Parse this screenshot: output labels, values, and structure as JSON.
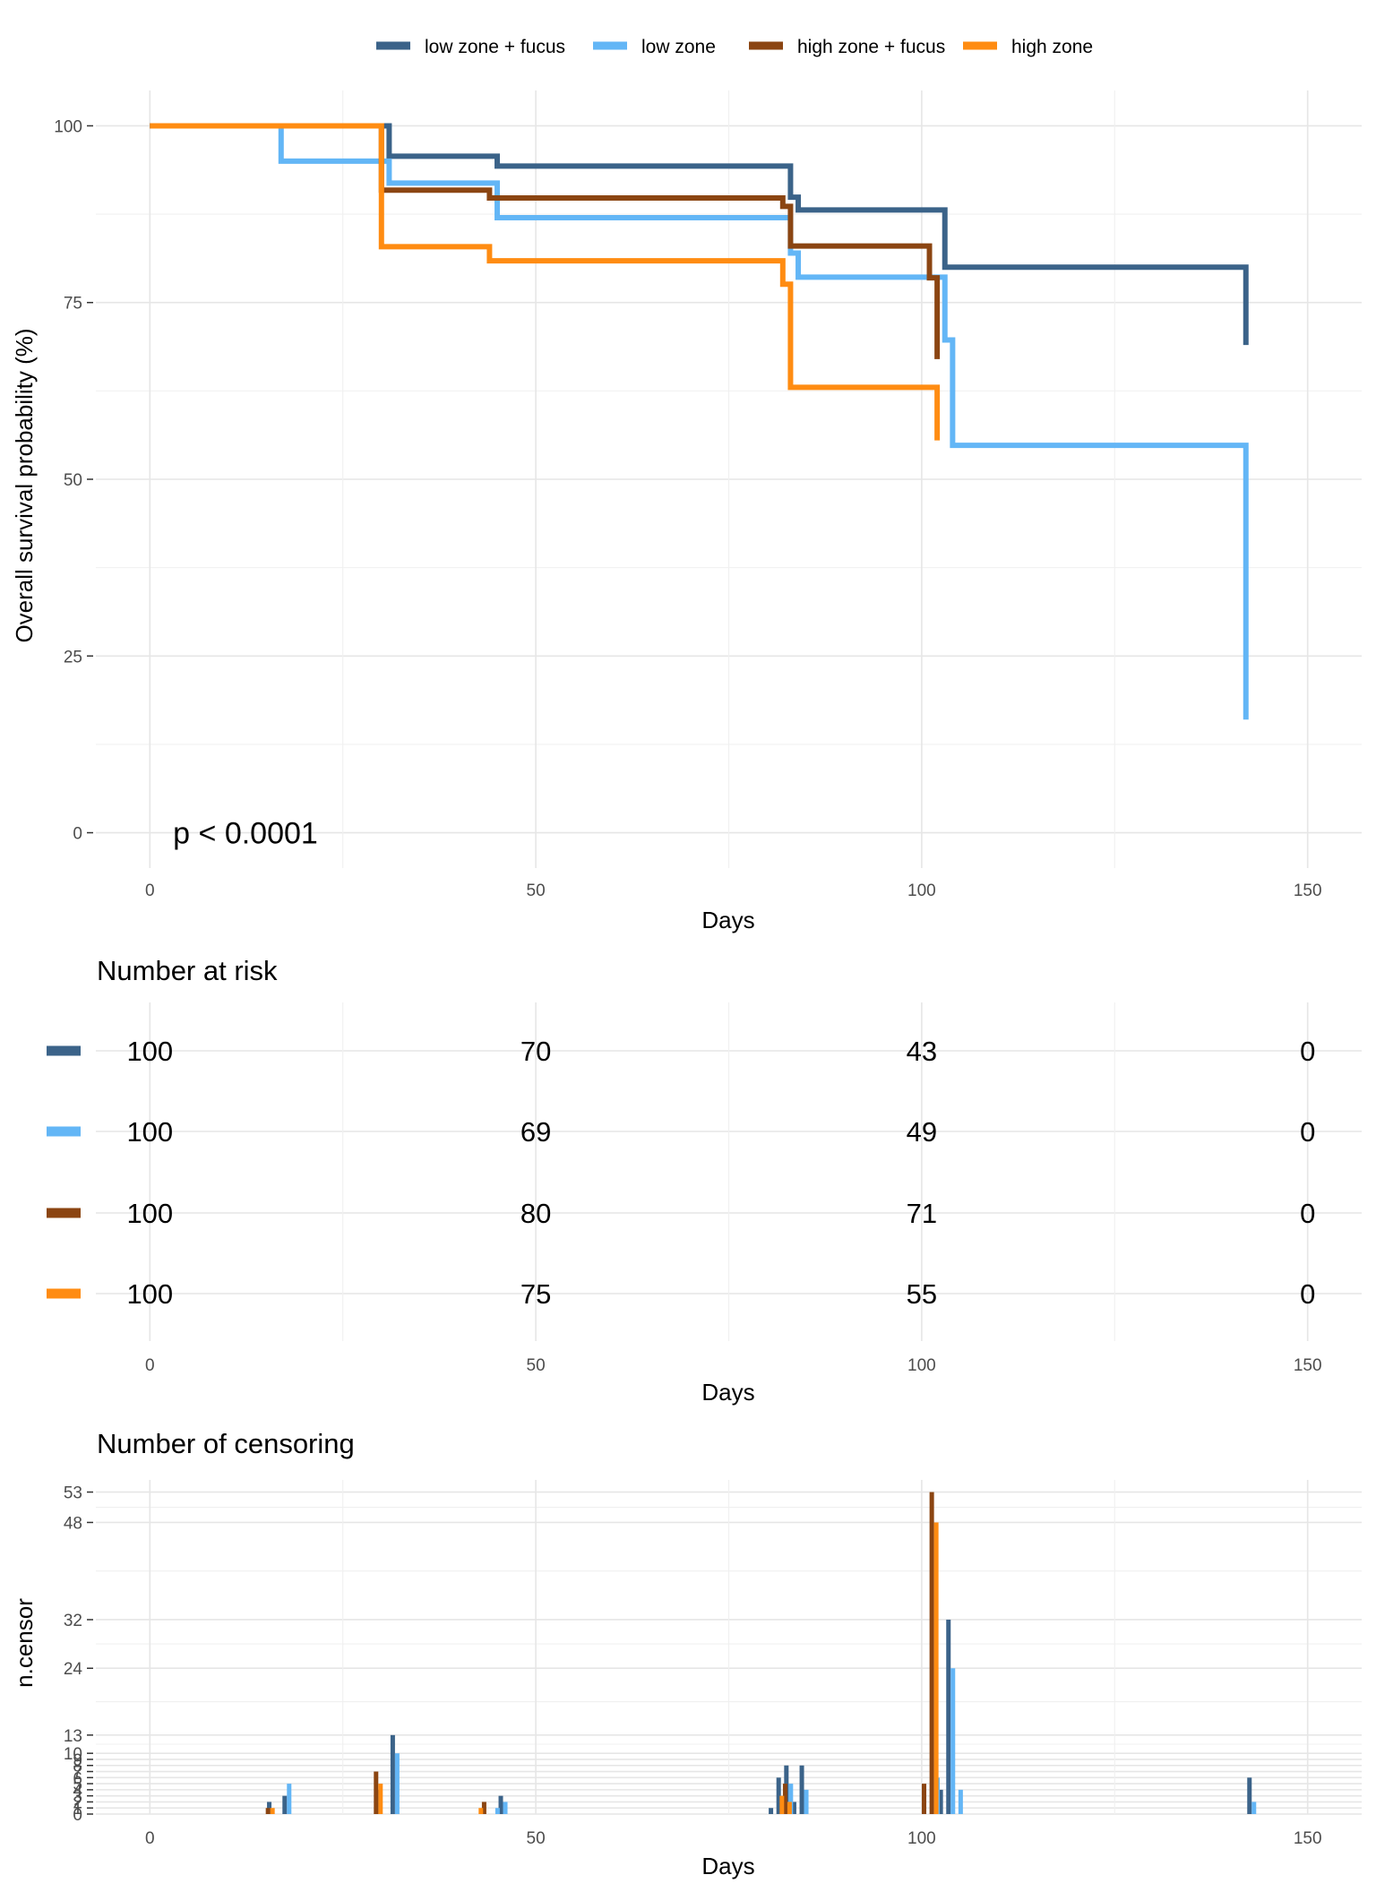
{
  "colors": {
    "low zone + fucus": "#3b6389",
    "low zone": "#63b6f6",
    "high zone + fucus": "#8b4512",
    "high zone": "#ff8c12"
  },
  "chart_data": [
    {
      "type": "line",
      "step": true,
      "legend_position": "top",
      "xlabel": "Days",
      "ylabel": "Overall survival probability (%)",
      "xlim": [
        -7,
        157
      ],
      "ylim": [
        -5,
        105
      ],
      "xticks": [
        0,
        50,
        100,
        150
      ],
      "yticks": [
        0,
        25,
        50,
        75,
        100
      ],
      "annotation": "p < 0.0001",
      "series": [
        {
          "name": "low zone + fucus",
          "x": [
            0,
            31,
            45,
            83,
            84,
            103,
            142,
            142
          ],
          "y": [
            100,
            95.7,
            94.3,
            89.9,
            88.1,
            80,
            80,
            69
          ]
        },
        {
          "name": "low zone",
          "x": [
            0,
            17,
            31,
            45,
            83,
            84,
            103,
            104,
            142,
            142
          ],
          "y": [
            100,
            95,
            91.9,
            87,
            82,
            78.6,
            69.7,
            54.8,
            54.8,
            16
          ]
        },
        {
          "name": "high zone + fucus",
          "x": [
            0,
            30,
            44,
            82,
            83,
            101,
            102,
            102
          ],
          "y": [
            100,
            90.9,
            89.8,
            88.6,
            83,
            78.5,
            67,
            67
          ]
        },
        {
          "name": "high zone",
          "x": [
            0,
            30,
            44,
            82,
            83,
            101,
            102,
            102
          ],
          "y": [
            100,
            82.9,
            80.9,
            77.6,
            63,
            63,
            55.5,
            55.5
          ]
        }
      ]
    },
    {
      "type": "table",
      "title": "Number at risk",
      "xlabel": "Days",
      "xlim": [
        -7,
        157
      ],
      "x": [
        0,
        50,
        100,
        150
      ],
      "rows": [
        {
          "series": "low zone + fucus",
          "values": [
            100,
            70,
            43,
            0
          ]
        },
        {
          "series": "low zone",
          "values": [
            100,
            69,
            49,
            0
          ]
        },
        {
          "series": "high zone + fucus",
          "values": [
            100,
            80,
            71,
            0
          ]
        },
        {
          "series": "high zone",
          "values": [
            100,
            75,
            55,
            0
          ]
        }
      ]
    },
    {
      "type": "bar",
      "title": "Number of censoring",
      "xlabel": "Days",
      "ylabel": "n.censor",
      "xlim": [
        -7,
        157
      ],
      "ylim": [
        0,
        55
      ],
      "xticks": [
        0,
        50,
        100,
        150
      ],
      "yticks": [
        0,
        1,
        2,
        3,
        4,
        5,
        6,
        7,
        8,
        9,
        10,
        13,
        24,
        32,
        48,
        53
      ],
      "ytick_labels": [
        "0",
        "1",
        "2",
        "3",
        "4",
        "5",
        "6",
        "7",
        "8",
        "9",
        "10",
        "13",
        "24",
        "32",
        "48",
        "53"
      ],
      "series": [
        {
          "name": "low zone + fucus",
          "x": [
            15,
            17,
            29,
            31,
            45,
            80,
            81,
            82,
            83,
            84,
            102,
            103,
            142
          ],
          "y": [
            2,
            3,
            4,
            13,
            3,
            1,
            6,
            8,
            2,
            8,
            4,
            32,
            6
          ]
        },
        {
          "name": "low zone",
          "x": [
            17,
            31,
            44,
            45,
            81,
            82,
            84,
            101,
            103,
            104,
            142
          ],
          "y": [
            5,
            10,
            1,
            2,
            3,
            5,
            4,
            6,
            24,
            4,
            2
          ]
        },
        {
          "name": "high zone + fucus",
          "x": [
            16,
            30,
            44,
            83,
            101,
            102
          ],
          "y": [
            1,
            7,
            2,
            5,
            5,
            53
          ]
        },
        {
          "name": "high zone",
          "x": [
            16,
            30,
            43,
            82,
            83,
            102
          ],
          "y": [
            1,
            5,
            1,
            3,
            2,
            48
          ]
        }
      ]
    }
  ]
}
